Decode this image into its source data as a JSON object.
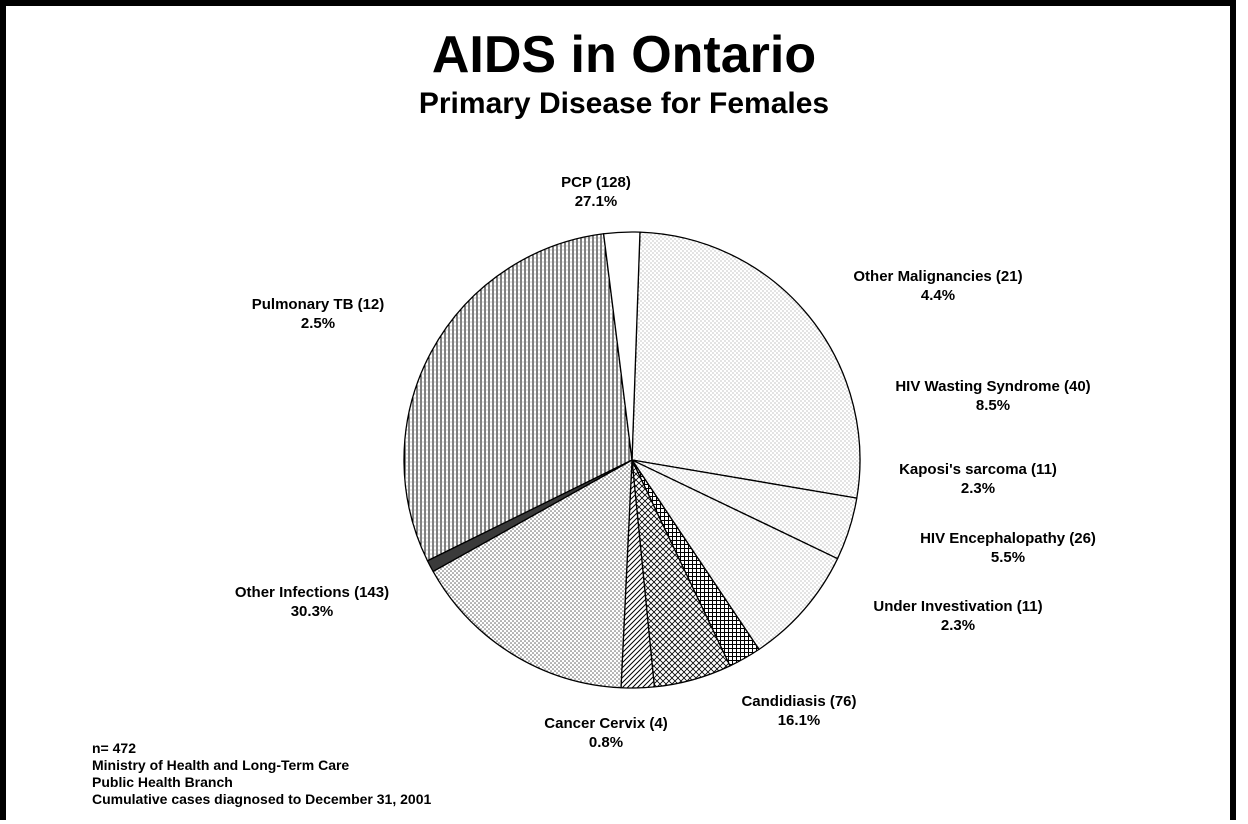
{
  "header": {
    "title": "AIDS in Ontario",
    "subtitle": "Primary Disease for Females"
  },
  "footer": {
    "n": "n= 472",
    "source1": "Ministry of Health and Long-Term Care",
    "source2": "Public Health Branch",
    "note": "Cumulative cases diagnosed  to December 31, 2001"
  },
  "chart_data": {
    "type": "pie",
    "title": "AIDS in Ontario",
    "subtitle": "Primary Disease for Females",
    "total": 472,
    "slices": [
      {
        "category": "PCP",
        "count": 128,
        "percent": 27.1,
        "label": "PCP  (128)",
        "pct_label": "27.1%",
        "pattern": "fine-dots"
      },
      {
        "category": "Other Malignancies",
        "count": 21,
        "percent": 4.4,
        "label": "Other Malignancies  (21)",
        "pct_label": "4.4%",
        "pattern": "fine-dots"
      },
      {
        "category": "HIV Wasting Syndrome",
        "count": 40,
        "percent": 8.5,
        "label": "HIV Wasting Syndrome  (40)",
        "pct_label": "8.5%",
        "pattern": "fine-dots"
      },
      {
        "category": "Kaposi's sarcoma",
        "count": 11,
        "percent": 2.3,
        "label": "Kaposi's sarcoma  (11)",
        "pct_label": "2.3%",
        "pattern": "grid"
      },
      {
        "category": "HIV Encephalopathy",
        "count": 26,
        "percent": 5.5,
        "label": "HIV Encephalopathy  (26)",
        "pct_label": "5.5%",
        "pattern": "crosshatch"
      },
      {
        "category": "Under Investivation",
        "count": 11,
        "percent": 2.3,
        "label": "Under Investivation  (11)",
        "pct_label": "2.3%",
        "pattern": "diagonal"
      },
      {
        "category": "Candidiasis",
        "count": 76,
        "percent": 16.1,
        "label": "Candidiasis  (76)",
        "pct_label": "16.1%",
        "pattern": "dots"
      },
      {
        "category": "Cancer Cervix",
        "count": 4,
        "percent": 0.8,
        "label": "Cancer Cervix  (4)",
        "pct_label": "0.8%",
        "pattern": "solid-dark"
      },
      {
        "category": "Other Infections",
        "count": 143,
        "percent": 30.3,
        "label": "Other Infections  (143)",
        "pct_label": "30.3%",
        "pattern": "vertical-lines"
      },
      {
        "category": "Pulmonary TB",
        "count": 12,
        "percent": 2.5,
        "label": "Pulmonary TB  (12)",
        "pct_label": "2.5%",
        "pattern": "white"
      }
    ],
    "colors": {
      "stroke": "#000000",
      "background": "#ffffff",
      "dark_fill": "#3a3a3a"
    }
  }
}
